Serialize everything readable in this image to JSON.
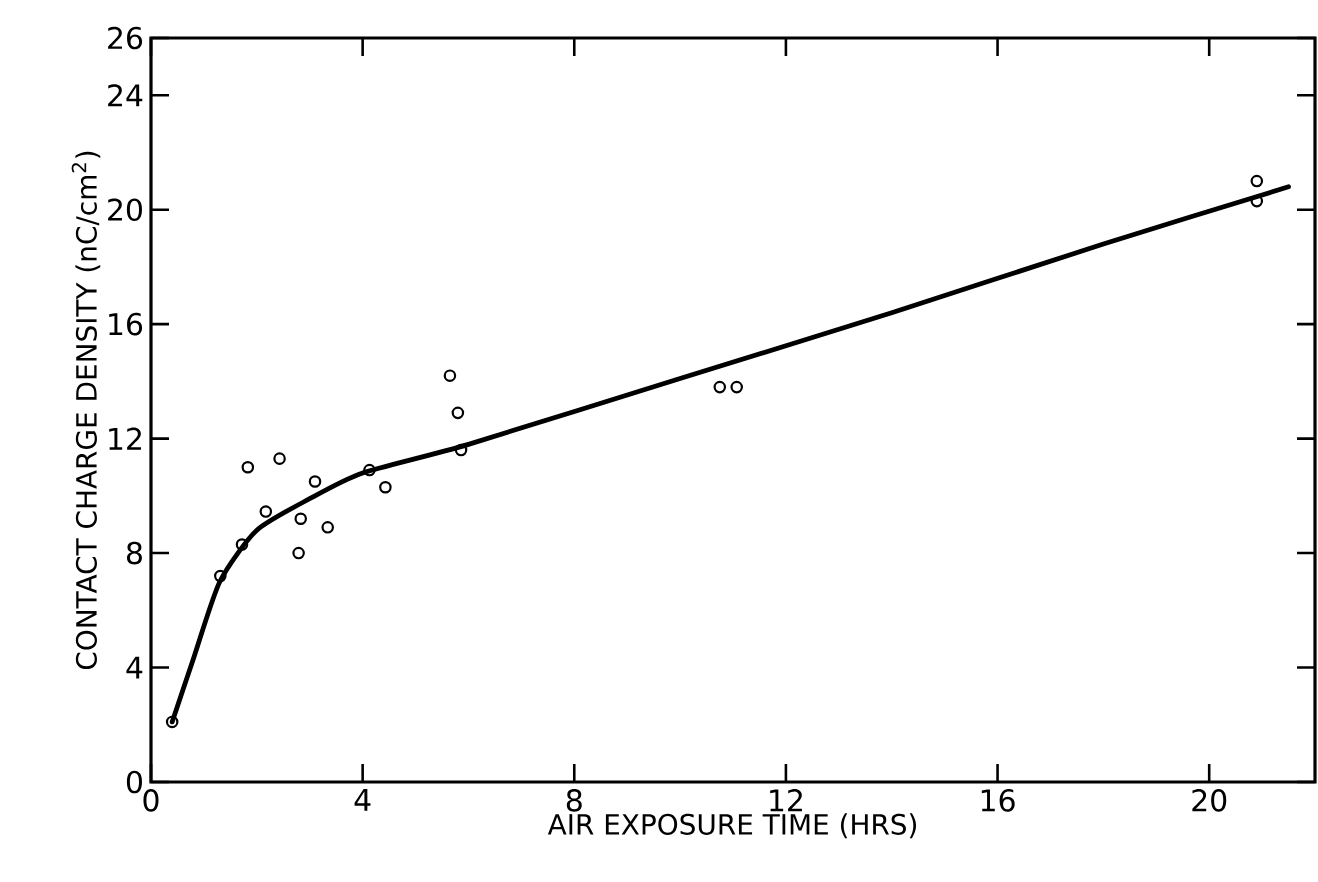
{
  "chart_data": {
    "type": "scatter",
    "xlabel": "AIR EXPOSURE TIME (HRS)",
    "ylabel": "CONTACT  CHARGE  DENSITY (nC/cm$^{2}$)",
    "xlim": [
      0,
      22
    ],
    "ylim": [
      0,
      26
    ],
    "xticks": [
      0,
      4,
      8,
      12,
      16,
      20
    ],
    "yticks": [
      0,
      4,
      8,
      12,
      16,
      20,
      24,
      26
    ],
    "grid": false,
    "marker": "circle",
    "series": [
      {
        "color": "#000000",
        "x": [
          0.4,
          1.31,
          1.72,
          1.83,
          2.17,
          2.43,
          2.79,
          2.83,
          3.1,
          3.34,
          4.13,
          4.43,
          5.65,
          5.8,
          5.86,
          10.75,
          11.07,
          20.9,
          20.9
        ],
        "values": [
          2.1,
          7.2,
          8.3,
          11.0,
          9.45,
          11.3,
          8.0,
          9.2,
          10.5,
          8.9,
          10.9,
          10.3,
          14.2,
          12.9,
          11.6,
          13.8,
          13.8,
          21.0,
          20.3
        ]
      },
      {
        "type": "line",
        "color": "#000000",
        "marker": "none",
        "line_style": "solid",
        "x": [
          0.4,
          0.8,
          1.3,
          2.0,
          3.0,
          4.0,
          6.0,
          10.0,
          14.0,
          18.0,
          21.5
        ],
        "values": [
          2.1,
          4.3,
          7.0,
          8.8,
          9.9,
          10.8,
          11.8,
          14.1,
          16.4,
          18.8,
          20.8
        ]
      }
    ]
  }
}
